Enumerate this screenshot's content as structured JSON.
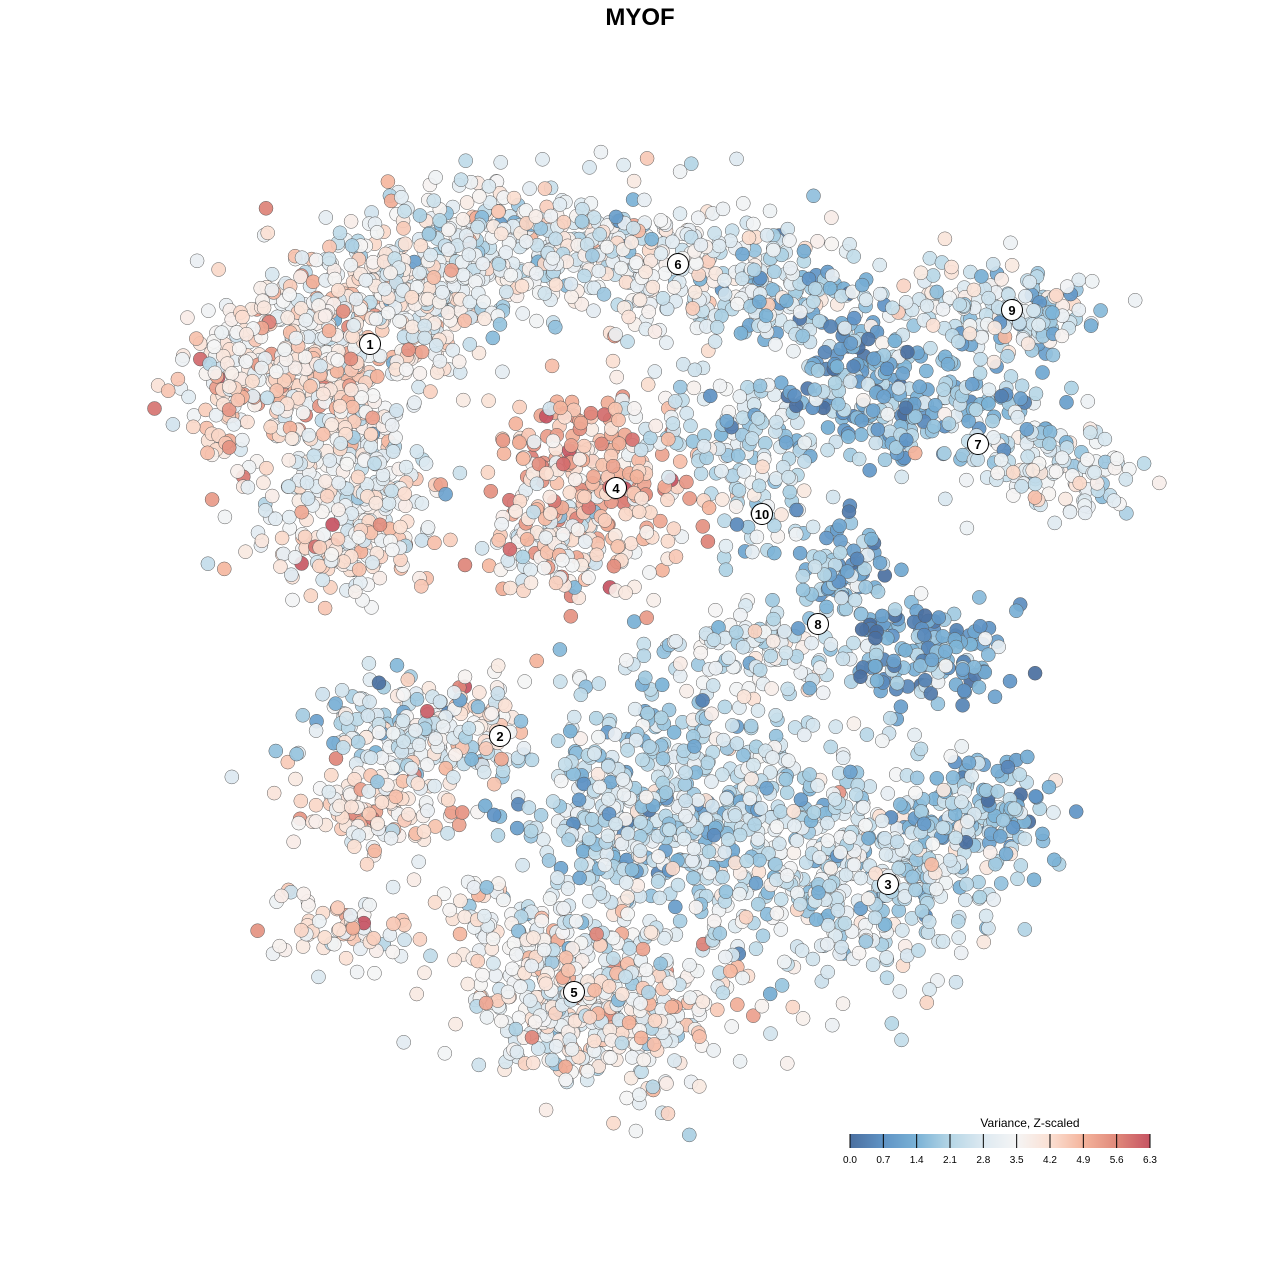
{
  "chart_data": {
    "type": "scatter",
    "title": "MYOF",
    "xlabel": "",
    "ylabel": "",
    "grid": false,
    "legend": {
      "title": "Variance, Z-scaled",
      "placement": "bottom-right",
      "ticks": [
        "0.0",
        "0.7",
        "1.4",
        "2.1",
        "2.8",
        "3.5",
        "4.2",
        "4.9",
        "5.6",
        "6.3"
      ],
      "range": [
        0,
        6.3
      ],
      "colors": [
        "#4a6fa0",
        "#5f93c5",
        "#7ab2d6",
        "#b5d6e6",
        "#dde9f1",
        "#f5f5f5",
        "#fbe0d3",
        "#f4b49c",
        "#e0887a",
        "#c65362"
      ]
    },
    "cluster_labels": [
      {
        "label": "1",
        "u": -6.75,
        "v": 7.4
      },
      {
        "label": "2",
        "u": -3.5,
        "v": -2.4
      },
      {
        "label": "3",
        "u": 6.2,
        "v": -6.1
      },
      {
        "label": "4",
        "u": -0.6,
        "v": 3.8
      },
      {
        "label": "5",
        "u": -1.65,
        "v": -8.8
      },
      {
        "label": "6",
        "u": 0.95,
        "v": 9.4
      },
      {
        "label": "7",
        "u": 8.45,
        "v": 4.9
      },
      {
        "label": "8",
        "u": 4.45,
        "v": 0.4
      },
      {
        "label": "9",
        "u": 9.3,
        "v": 8.25
      },
      {
        "label": "10",
        "u": 3.05,
        "v": 3.15
      }
    ],
    "point_groups_note": "points sampled per group: center (u,v), spread (su,sv), count n, mean expression m",
    "point_groups": [
      [
        -8.5,
        7.0,
        1.4,
        1.1,
        350,
        3.8
      ],
      [
        -6.0,
        8.75,
        1.5,
        1.0,
        300,
        3.4
      ],
      [
        -7.25,
        4.25,
        1.1,
        1.25,
        250,
        3.4
      ],
      [
        -7.25,
        2.1,
        0.9,
        0.5,
        80,
        4.0
      ],
      [
        -10.25,
        5.5,
        0.5,
        1.0,
        40,
        4.3
      ],
      [
        -3.0,
        10.0,
        1.5,
        0.75,
        250,
        3.0
      ],
      [
        1.0,
        9.25,
        1.75,
        0.9,
        250,
        3.2
      ],
      [
        3.75,
        8.5,
        1.0,
        0.6,
        100,
        2.0
      ],
      [
        -1.25,
        3.75,
        1.25,
        1.25,
        300,
        4.6
      ],
      [
        -2.25,
        2.5,
        0.75,
        0.6,
        60,
        3.0
      ],
      [
        3.1,
        3.75,
        0.75,
        1.0,
        80,
        2.5
      ],
      [
        2.0,
        5.25,
        1.0,
        0.6,
        60,
        2.6
      ],
      [
        6.5,
        6.0,
        1.75,
        0.75,
        250,
        1.7
      ],
      [
        10.25,
        4.25,
        1.25,
        0.6,
        120,
        3.0
      ],
      [
        5.5,
        7.25,
        0.5,
        0.5,
        40,
        1.0
      ],
      [
        8.5,
        8.25,
        1.25,
        0.6,
        120,
        2.8
      ],
      [
        10.0,
        8.0,
        0.5,
        0.6,
        50,
        2.0
      ],
      [
        7.0,
        -0.25,
        1.1,
        0.6,
        150,
        1.3
      ],
      [
        5.25,
        1.75,
        0.6,
        0.6,
        80,
        1.4
      ],
      [
        3.0,
        -0.25,
        1.25,
        0.5,
        100,
        2.6
      ],
      [
        -6.0,
        -2.25,
        1.1,
        0.6,
        150,
        2.6
      ],
      [
        -6.5,
        -4.25,
        1.1,
        0.6,
        120,
        4.0
      ],
      [
        -4.0,
        -2.0,
        0.75,
        0.6,
        60,
        4.0
      ],
      [
        5.75,
        -6.0,
        1.75,
        1.25,
        400,
        2.7
      ],
      [
        8.5,
        -4.25,
        0.9,
        0.6,
        120,
        1.6
      ],
      [
        1.0,
        -4.0,
        2.0,
        1.5,
        600,
        2.4
      ],
      [
        -1.0,
        -9.0,
        1.75,
        1.1,
        450,
        3.5
      ],
      [
        -3.0,
        -7.25,
        0.9,
        0.6,
        80,
        3.3
      ],
      [
        -7.5,
        -7.25,
        1.0,
        0.45,
        60,
        3.8
      ]
    ]
  }
}
